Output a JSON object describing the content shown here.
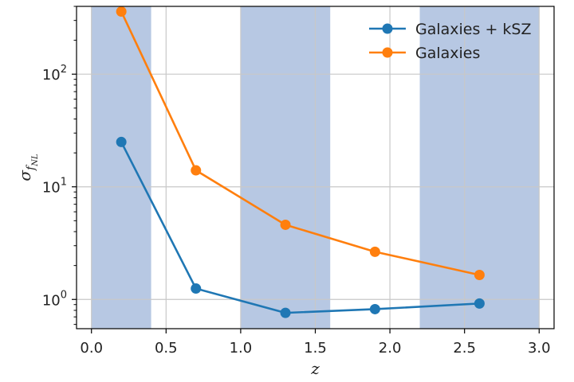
{
  "chart_data": {
    "type": "line",
    "xlabel": "z",
    "ylabel": "σ_{f_NL}",
    "xlim": [
      -0.1,
      3.1
    ],
    "ylim": [
      0.55,
      400
    ],
    "yscale": "log",
    "grid": true,
    "legend_position": "top-right",
    "xticks": [
      "0.0",
      "0.5",
      "1.0",
      "1.5",
      "2.0",
      "2.5",
      "3.0"
    ],
    "yticks": [
      1,
      10,
      100
    ],
    "shaded_bands": [
      [
        0.0,
        0.4
      ],
      [
        1.0,
        1.6
      ],
      [
        2.2,
        3.0
      ]
    ],
    "shade_color": "#b7c8e3",
    "series": [
      {
        "name": "Galaxies + kSZ",
        "color": "#1f77b4",
        "x": [
          0.2,
          0.7,
          1.3,
          1.9,
          2.6
        ],
        "y": [
          25,
          1.25,
          0.76,
          0.82,
          0.92
        ]
      },
      {
        "name": "Galaxies",
        "color": "#ff7f0e",
        "x": [
          0.2,
          0.7,
          1.3,
          1.9,
          2.6
        ],
        "y": [
          360,
          14,
          4.6,
          2.65,
          1.65
        ]
      }
    ]
  }
}
